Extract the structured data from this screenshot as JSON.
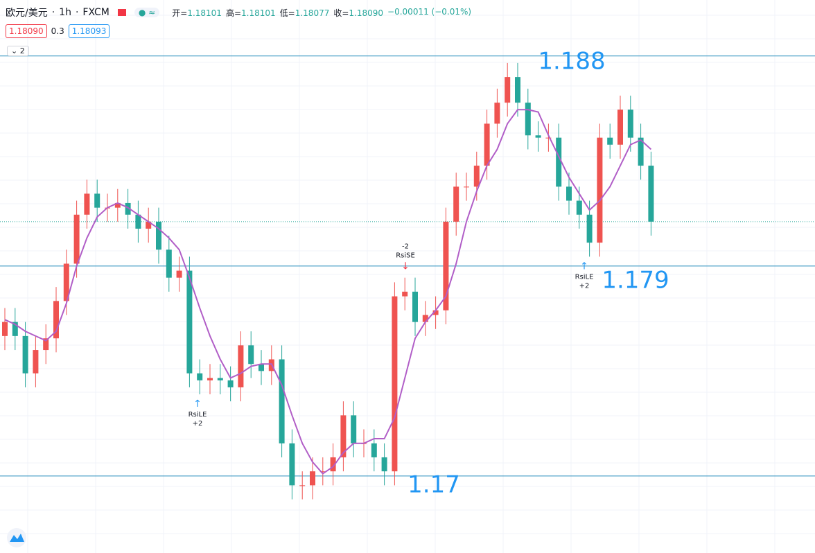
{
  "header": {
    "symbol": "欧元/美元",
    "interval": "1h",
    "exchange": "FXCM",
    "open_label": "开",
    "open": "1.18101",
    "high_label": "高",
    "high": "1.18101",
    "low_label": "低",
    "low": "1.18077",
    "close_label": "收",
    "close": "1.18090",
    "change": "−0.00011 (−0.01%)",
    "sell": "1.18090",
    "spread": "0.3",
    "buy": "1.18093",
    "indicators": "2"
  },
  "chart_data": {
    "type": "candlestick",
    "up_color": "#ef5350",
    "down_color": "#26a69a",
    "ylim": [
      1.1667,
      1.1904
    ],
    "levels": [
      1.188,
      1.179,
      1.17
    ],
    "level_color": "#2a8fbd",
    "last_price": 1.1809,
    "open": [
      1.176,
      1.1766,
      1.176,
      1.1744,
      1.1754,
      1.1759,
      1.1775,
      1.1791,
      1.1812,
      1.1821,
      1.1815,
      1.1815,
      1.1817,
      1.1812,
      1.1806,
      1.1809,
      1.1797,
      1.1785,
      1.1788,
      1.1744,
      1.1741,
      1.1742,
      1.1741,
      1.1738,
      1.1756,
      1.1748,
      1.1745,
      1.175,
      1.1714,
      1.1696,
      1.1696,
      1.1702,
      1.1702,
      1.1708,
      1.1726,
      1.1714,
      1.1714,
      1.1708,
      1.1702,
      1.1777,
      1.1779,
      1.1766,
      1.1769,
      1.1771,
      1.1809,
      1.1824,
      1.1824,
      1.1833,
      1.1851,
      1.186,
      1.1871,
      1.186,
      1.1846,
      1.1845,
      1.1845,
      1.1824,
      1.1818,
      1.1812,
      1.18,
      1.1845,
      1.1842,
      1.1857,
      1.1845,
      1.1833
    ],
    "high": [
      1.1772,
      1.1772,
      1.1766,
      1.176,
      1.1765,
      1.1781,
      1.1797,
      1.1818,
      1.1827,
      1.1827,
      1.1821,
      1.1823,
      1.1823,
      1.1818,
      1.1815,
      1.1815,
      1.1803,
      1.1794,
      1.1794,
      1.175,
      1.1748,
      1.1748,
      1.1747,
      1.1762,
      1.1762,
      1.1754,
      1.1756,
      1.1756,
      1.172,
      1.1702,
      1.1708,
      1.1708,
      1.1714,
      1.1732,
      1.1732,
      1.172,
      1.172,
      1.1714,
      1.1783,
      1.1785,
      1.1785,
      1.1775,
      1.1777,
      1.1815,
      1.183,
      1.183,
      1.1839,
      1.1857,
      1.1866,
      1.1877,
      1.1877,
      1.1866,
      1.1852,
      1.1851,
      1.1851,
      1.183,
      1.1824,
      1.1818,
      1.1851,
      1.1851,
      1.1863,
      1.1863,
      1.1851,
      1.1839
    ],
    "low": [
      1.1754,
      1.1754,
      1.1738,
      1.1738,
      1.1748,
      1.1753,
      1.1769,
      1.1785,
      1.1806,
      1.1809,
      1.1809,
      1.1809,
      1.1806,
      1.18,
      1.18,
      1.1791,
      1.1779,
      1.1779,
      1.1738,
      1.1735,
      1.1735,
      1.1735,
      1.1732,
      1.1732,
      1.1742,
      1.1739,
      1.1739,
      1.1708,
      1.169,
      1.169,
      1.169,
      1.1696,
      1.1696,
      1.1702,
      1.1708,
      1.1708,
      1.1702,
      1.1696,
      1.1696,
      1.1771,
      1.176,
      1.176,
      1.1763,
      1.1765,
      1.1803,
      1.1818,
      1.1818,
      1.1827,
      1.1845,
      1.1854,
      1.1854,
      1.184,
      1.1839,
      1.1839,
      1.1818,
      1.1812,
      1.1806,
      1.1794,
      1.1794,
      1.1836,
      1.1836,
      1.1839,
      1.1827,
      1.1803
    ],
    "close": [
      1.1766,
      1.176,
      1.1744,
      1.1754,
      1.1759,
      1.1775,
      1.1791,
      1.1812,
      1.1821,
      1.1815,
      1.1815,
      1.1817,
      1.1812,
      1.1806,
      1.1809,
      1.1797,
      1.1785,
      1.1788,
      1.1744,
      1.1741,
      1.1742,
      1.1741,
      1.1738,
      1.1756,
      1.1748,
      1.1745,
      1.175,
      1.1714,
      1.1696,
      1.1696,
      1.1702,
      1.1702,
      1.1708,
      1.1726,
      1.1714,
      1.1714,
      1.1708,
      1.1702,
      1.1777,
      1.1779,
      1.1766,
      1.1769,
      1.1771,
      1.1809,
      1.1824,
      1.1824,
      1.1833,
      1.1851,
      1.186,
      1.1871,
      1.186,
      1.1846,
      1.1845,
      1.1845,
      1.1824,
      1.1818,
      1.1812,
      1.18,
      1.1845,
      1.1842,
      1.1857,
      1.1845,
      1.1833,
      1.1809
    ],
    "ma": {
      "color": "#b15ec7",
      "values": [
        1.1767,
        1.1765,
        1.1762,
        1.176,
        1.1758,
        1.1762,
        1.1774,
        1.179,
        1.1802,
        1.1811,
        1.1815,
        1.1817,
        1.1815,
        1.1812,
        1.1809,
        1.1806,
        1.1802,
        1.1797,
        1.1785,
        1.1772,
        1.176,
        1.175,
        1.1742,
        1.1744,
        1.1747,
        1.1748,
        1.1748,
        1.1739,
        1.1726,
        1.1714,
        1.1706,
        1.1701,
        1.1704,
        1.171,
        1.1714,
        1.1714,
        1.1716,
        1.1716,
        1.1725,
        1.1742,
        1.1759,
        1.1766,
        1.1771,
        1.1777,
        1.1791,
        1.1809,
        1.1822,
        1.1833,
        1.184,
        1.1851,
        1.1857,
        1.1857,
        1.1856,
        1.1846,
        1.1837,
        1.1828,
        1.1821,
        1.1814,
        1.1818,
        1.1824,
        1.1833,
        1.1842,
        1.1844,
        1.184
      ]
    },
    "signals": [
      {
        "label": "RsiLE",
        "qty": "+2"
      },
      {
        "label": "RsiSE",
        "qty": "-2"
      },
      {
        "label": "RsiLE",
        "qty": "+2"
      }
    ]
  }
}
